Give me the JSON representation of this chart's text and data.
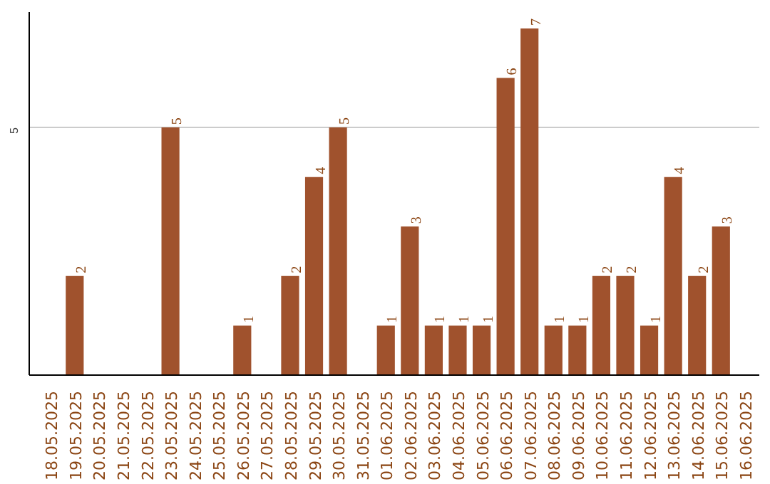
{
  "chart_data": {
    "type": "bar",
    "categories": [
      "18.05.2025",
      "19.05.2025",
      "20.05.2025",
      "21.05.2025",
      "22.05.2025",
      "23.05.2025",
      "24.05.2025",
      "25.05.2025",
      "26.05.2025",
      "27.05.2025",
      "28.05.2025",
      "29.05.2025",
      "30.05.2025",
      "31.05.2025",
      "01.06.2025",
      "02.06.2025",
      "03.06.2025",
      "04.06.2025",
      "05.06.2025",
      "06.06.2025",
      "07.06.2025",
      "08.06.2025",
      "09.06.2025",
      "10.06.2025",
      "11.06.2025",
      "12.06.2025",
      "13.06.2025",
      "14.06.2025",
      "15.06.2025",
      "16.06.2025"
    ],
    "values": [
      null,
      2,
      null,
      null,
      null,
      5,
      null,
      null,
      1,
      null,
      2,
      4,
      5,
      null,
      1,
      3,
      1,
      1,
      1,
      6,
      7,
      1,
      1,
      2,
      2,
      1,
      4,
      2,
      3,
      null
    ],
    "color": "#a0522d",
    "ylim": [
      0,
      7.33
    ],
    "yticks": [
      5
    ],
    "grid": "y",
    "data_labels": true
  }
}
